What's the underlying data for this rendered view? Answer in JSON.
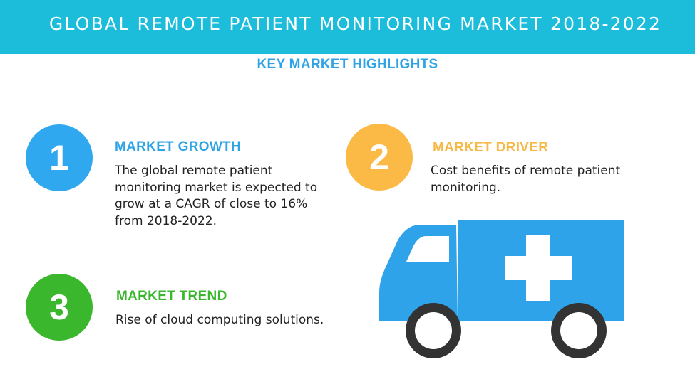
{
  "banner": {
    "title": "GLOBAL REMOTE PATIENT MONITORING MARKET 2018-2022"
  },
  "subtitle": "KEY MARKET HIGHLIGHTS",
  "highlights": [
    {
      "number": "1",
      "heading": "MARKET GROWTH",
      "lines": [
        "The global remote patient",
        "monitoring market is expected to",
        "grow at a CAGR of close to 16%",
        "from 2018-2022."
      ],
      "color": "#2fa8f0"
    },
    {
      "number": "2",
      "heading": "MARKET DRIVER",
      "lines": [
        "Cost benefits of remote patient",
        "monitoring."
      ],
      "color": "#fbb945"
    },
    {
      "number": "3",
      "heading": "MARKET TREND",
      "lines": [
        "Rise of cloud computing solutions."
      ],
      "color": "#3ab72d"
    }
  ],
  "illustration": {
    "icon": "ambulance-icon",
    "body_color": "#2fa3ea",
    "wheel_color": "#333333"
  }
}
